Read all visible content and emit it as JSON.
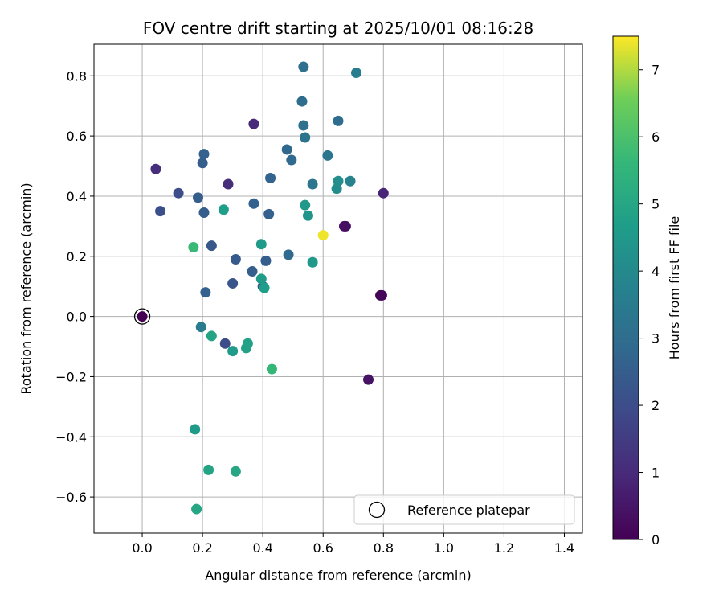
{
  "chart_data": {
    "type": "scatter",
    "title": "FOV centre drift starting at 2025/10/01 08:16:28",
    "xlabel": "Angular distance from reference (arcmin)",
    "ylabel": "Rotation from reference (arcmin)",
    "xlim": [
      -0.16,
      1.46
    ],
    "ylim": [
      -0.72,
      0.905
    ],
    "xticks": [
      0.0,
      0.2,
      0.4,
      0.6,
      0.8,
      1.0,
      1.2,
      1.4
    ],
    "xtick_labels": [
      "0.0",
      "0.2",
      "0.4",
      "0.6",
      "0.8",
      "1.0",
      "1.2",
      "1.4"
    ],
    "yticks": [
      -0.6,
      -0.4,
      -0.2,
      0.0,
      0.2,
      0.4,
      0.6,
      0.8
    ],
    "ytick_labels": [
      "−0.6",
      "−0.4",
      "−0.2",
      "0.0",
      "0.2",
      "0.4",
      "0.6",
      "0.8"
    ],
    "grid": true,
    "colormap": "viridis",
    "colorbar": {
      "label": "Hours from first FF file",
      "range": [
        0,
        7.5
      ],
      "ticks": [
        0,
        1,
        2,
        3,
        4,
        5,
        6,
        7
      ],
      "tick_labels": [
        "0",
        "1",
        "2",
        "3",
        "4",
        "5",
        "6",
        "7"
      ]
    },
    "legend": {
      "location": "lower-right",
      "entries": [
        "Reference platepar"
      ]
    },
    "reference_point": {
      "x": 0.0,
      "y": 0.0
    },
    "points": [
      {
        "x": 0.0,
        "y": 0.0,
        "c": 0.0
      },
      {
        "x": 0.79,
        "y": 0.07,
        "c": 0.05
      },
      {
        "x": 0.795,
        "y": 0.07,
        "c": 0.1
      },
      {
        "x": 0.675,
        "y": 0.3,
        "c": 0.3
      },
      {
        "x": 0.67,
        "y": 0.3,
        "c": 0.35
      },
      {
        "x": 0.75,
        "y": -0.21,
        "c": 0.4
      },
      {
        "x": 0.8,
        "y": 0.41,
        "c": 0.9
      },
      {
        "x": 0.045,
        "y": 0.49,
        "c": 1.1
      },
      {
        "x": 0.37,
        "y": 0.64,
        "c": 1.0
      },
      {
        "x": 0.285,
        "y": 0.44,
        "c": 1.1
      },
      {
        "x": 0.12,
        "y": 0.41,
        "c": 2.0
      },
      {
        "x": 0.06,
        "y": 0.35,
        "c": 2.1
      },
      {
        "x": 0.275,
        "y": -0.09,
        "c": 2.0
      },
      {
        "x": 0.3,
        "y": 0.11,
        "c": 2.2
      },
      {
        "x": 0.23,
        "y": 0.235,
        "c": 2.3
      },
      {
        "x": 0.31,
        "y": 0.19,
        "c": 2.4
      },
      {
        "x": 0.185,
        "y": 0.395,
        "c": 2.5
      },
      {
        "x": 0.2,
        "y": 0.51,
        "c": 2.5
      },
      {
        "x": 0.205,
        "y": 0.54,
        "c": 2.6
      },
      {
        "x": 0.205,
        "y": 0.345,
        "c": 2.5
      },
      {
        "x": 0.21,
        "y": 0.08,
        "c": 2.6
      },
      {
        "x": 0.4,
        "y": 0.1,
        "c": 2.0
      },
      {
        "x": 0.365,
        "y": 0.15,
        "c": 2.5
      },
      {
        "x": 0.41,
        "y": 0.185,
        "c": 2.5
      },
      {
        "x": 0.37,
        "y": 0.375,
        "c": 2.6
      },
      {
        "x": 0.42,
        "y": 0.34,
        "c": 2.6
      },
      {
        "x": 0.425,
        "y": 0.46,
        "c": 2.7
      },
      {
        "x": 0.48,
        "y": 0.555,
        "c": 2.8
      },
      {
        "x": 0.495,
        "y": 0.52,
        "c": 2.9
      },
      {
        "x": 0.485,
        "y": 0.205,
        "c": 2.9
      },
      {
        "x": 0.53,
        "y": 0.715,
        "c": 3.0
      },
      {
        "x": 0.535,
        "y": 0.83,
        "c": 3.1
      },
      {
        "x": 0.535,
        "y": 0.635,
        "c": 3.1
      },
      {
        "x": 0.54,
        "y": 0.595,
        "c": 3.2
      },
      {
        "x": 0.565,
        "y": 0.44,
        "c": 3.3
      },
      {
        "x": 0.615,
        "y": 0.535,
        "c": 3.3
      },
      {
        "x": 0.65,
        "y": 0.65,
        "c": 3.0
      },
      {
        "x": 0.71,
        "y": 0.81,
        "c": 3.6
      },
      {
        "x": 0.65,
        "y": 0.45,
        "c": 4.2
      },
      {
        "x": 0.645,
        "y": 0.425,
        "c": 4.1
      },
      {
        "x": 0.69,
        "y": 0.45,
        "c": 3.8
      },
      {
        "x": 0.195,
        "y": -0.035,
        "c": 3.5
      },
      {
        "x": 0.54,
        "y": 0.37,
        "c": 4.5
      },
      {
        "x": 0.55,
        "y": 0.335,
        "c": 4.4
      },
      {
        "x": 0.565,
        "y": 0.18,
        "c": 4.5
      },
      {
        "x": 0.395,
        "y": 0.24,
        "c": 4.6
      },
      {
        "x": 0.395,
        "y": 0.125,
        "c": 4.6
      },
      {
        "x": 0.405,
        "y": 0.095,
        "c": 4.7
      },
      {
        "x": 0.27,
        "y": 0.355,
        "c": 4.7
      },
      {
        "x": 0.23,
        "y": -0.065,
        "c": 4.9
      },
      {
        "x": 0.3,
        "y": -0.115,
        "c": 4.6
      },
      {
        "x": 0.345,
        "y": -0.105,
        "c": 4.8
      },
      {
        "x": 0.35,
        "y": -0.09,
        "c": 4.8
      },
      {
        "x": 0.175,
        "y": -0.375,
        "c": 4.6
      },
      {
        "x": 0.22,
        "y": -0.51,
        "c": 4.9
      },
      {
        "x": 0.31,
        "y": -0.515,
        "c": 5.0
      },
      {
        "x": 0.18,
        "y": -0.64,
        "c": 5.0
      },
      {
        "x": 0.17,
        "y": 0.23,
        "c": 5.7
      },
      {
        "x": 0.43,
        "y": -0.175,
        "c": 5.6
      },
      {
        "x": 0.6,
        "y": 0.27,
        "c": 7.4
      }
    ]
  }
}
